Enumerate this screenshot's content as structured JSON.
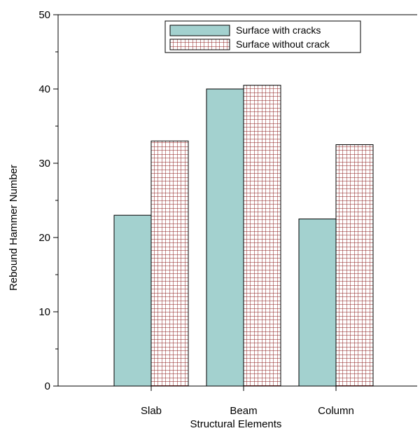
{
  "chart_data": {
    "type": "bar",
    "title": "",
    "xlabel": "Structural Elements",
    "ylabel": "Rebound Hammer Number",
    "categories": [
      "Slab",
      "Beam",
      "Column"
    ],
    "ylim": [
      0,
      50
    ],
    "yticks": [
      0,
      10,
      20,
      30,
      40,
      50
    ],
    "grid": false,
    "legend_position": "top-right",
    "series": [
      {
        "name": "Surface with cracks",
        "values": [
          23,
          40,
          22.5
        ],
        "color": "#a3d1cf",
        "pattern": "solid"
      },
      {
        "name": "Surface without crack",
        "values": [
          33,
          40.5,
          32.5
        ],
        "color": "#8b1a1a",
        "pattern": "grid"
      }
    ]
  }
}
